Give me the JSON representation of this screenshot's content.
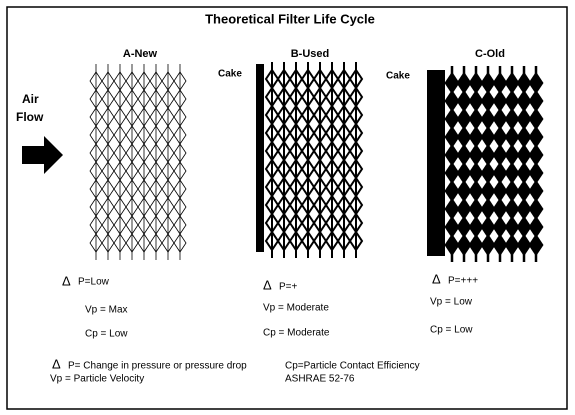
{
  "title": "Theoretical Filter Life Cycle",
  "air_flow": [
    "Air",
    "Flow"
  ],
  "delta": "Δ",
  "panels": [
    {
      "label": "A-New",
      "dp": "P=Low",
      "vp": "Vp = Max",
      "cp": "Cp = Low"
    },
    {
      "label": "B-Used",
      "cake": "Cake",
      "dp": "P=+",
      "vp": "Vp = Moderate",
      "cp": "Cp = Moderate"
    },
    {
      "label": "C-Old",
      "cake": "Cake",
      "dp": "P=+++",
      "vp": "Vp = Low",
      "cp": "Cp = Low"
    }
  ],
  "legend": {
    "dp": "P= Change in pressure or pressure drop",
    "cp": "Cp=Particle Contact Efficiency",
    "vp": "Vp = Particle Velocity",
    "source": "ASHRAE 52-76"
  }
}
